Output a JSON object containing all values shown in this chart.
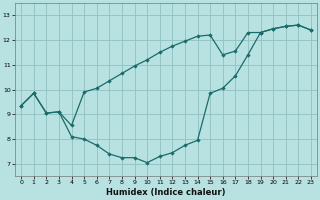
{
  "xlabel": "Humidex (Indice chaleur)",
  "bg_color": "#b8e2e2",
  "grid_color": "#90c0c0",
  "line_color": "#1a6b6b",
  "marker_color": "#1a6b6b",
  "xlim": [
    -0.5,
    23.5
  ],
  "ylim": [
    6.5,
    13.5
  ],
  "xticks": [
    0,
    1,
    2,
    3,
    4,
    5,
    6,
    7,
    8,
    9,
    10,
    11,
    12,
    13,
    14,
    15,
    16,
    17,
    18,
    19,
    20,
    21,
    22,
    23
  ],
  "yticks": [
    7,
    8,
    9,
    10,
    11,
    12,
    13
  ],
  "curve1_x": [
    0,
    1,
    2,
    3,
    4,
    5,
    6,
    7,
    8,
    9,
    10,
    11,
    12,
    13,
    14,
    15,
    16,
    17,
    18,
    19,
    20,
    21,
    22,
    23
  ],
  "curve1_y": [
    9.35,
    9.85,
    9.05,
    9.1,
    8.1,
    8.0,
    7.75,
    7.4,
    7.25,
    7.25,
    7.05,
    7.3,
    7.45,
    7.75,
    7.95,
    9.85,
    10.05,
    10.55,
    11.4,
    12.3,
    12.45,
    12.55,
    12.6,
    12.4
  ],
  "curve2_x": [
    0,
    1,
    2,
    3,
    4,
    5,
    6,
    7,
    8,
    9,
    10,
    11,
    12,
    13,
    14,
    15,
    16,
    17,
    18,
    19,
    20,
    21,
    22,
    23
  ],
  "curve2_y": [
    9.35,
    9.85,
    9.05,
    9.1,
    8.55,
    9.9,
    10.05,
    10.35,
    10.65,
    10.95,
    11.2,
    11.5,
    11.75,
    11.95,
    12.15,
    12.2,
    11.4,
    11.55,
    12.3,
    12.3,
    12.45,
    12.55,
    12.6,
    12.4
  ]
}
